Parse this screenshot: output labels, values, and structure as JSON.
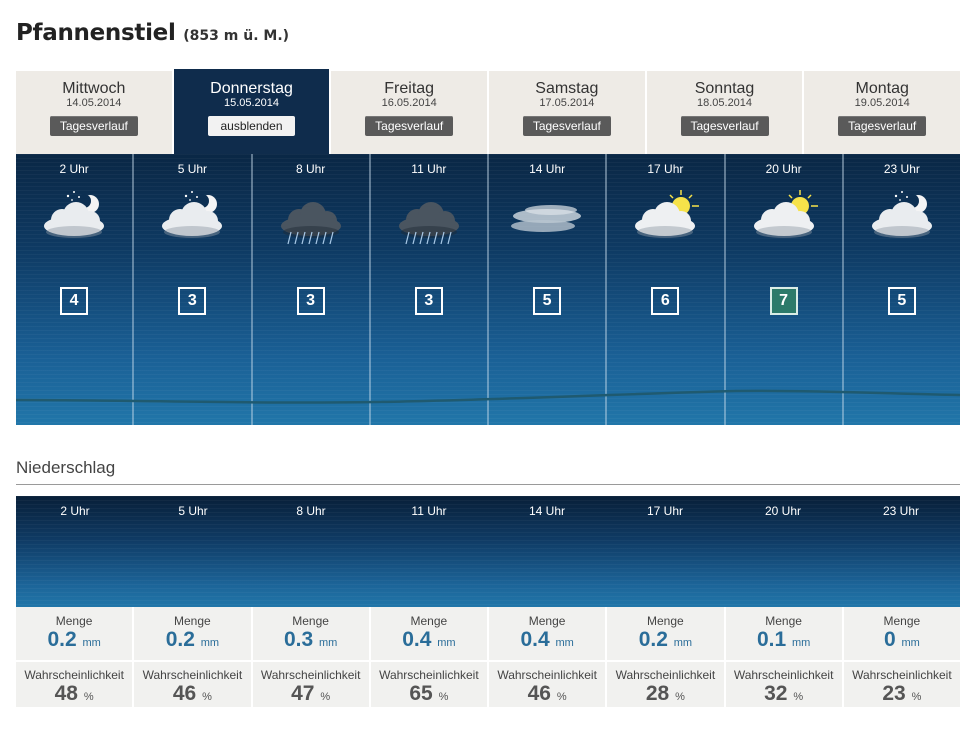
{
  "location": {
    "name": "Pfannenstiel",
    "elevation": "(853 m ü. M.)"
  },
  "days": [
    {
      "name": "Mittwoch",
      "date": "14.05.2014",
      "button": "Tagesverlauf",
      "active": false
    },
    {
      "name": "Donnerstag",
      "date": "15.05.2014",
      "button": "ausblenden",
      "active": true
    },
    {
      "name": "Freitag",
      "date": "16.05.2014",
      "button": "Tagesverlauf",
      "active": false
    },
    {
      "name": "Samstag",
      "date": "17.05.2014",
      "button": "Tagesverlauf",
      "active": false
    },
    {
      "name": "Sonntag",
      "date": "18.05.2014",
      "button": "Tagesverlauf",
      "active": false
    },
    {
      "name": "Montag",
      "date": "19.05.2014",
      "button": "Tagesverlauf",
      "active": false
    }
  ],
  "forecast": [
    {
      "hour": "2 Uhr",
      "icon": "moon-cloud-icon",
      "temp": "4"
    },
    {
      "hour": "5 Uhr",
      "icon": "moon-cloud-icon",
      "temp": "3"
    },
    {
      "hour": "8 Uhr",
      "icon": "rain-cloud-icon",
      "temp": "3"
    },
    {
      "hour": "11 Uhr",
      "icon": "rain-cloud-icon",
      "temp": "3"
    },
    {
      "hour": "14 Uhr",
      "icon": "fog-icon",
      "temp": "5"
    },
    {
      "hour": "17 Uhr",
      "icon": "sun-cloud-icon",
      "temp": "6"
    },
    {
      "hour": "20 Uhr",
      "icon": "sun-cloud-icon",
      "temp": "7"
    },
    {
      "hour": "23 Uhr",
      "icon": "moon-cloud-icon",
      "temp": "5"
    }
  ],
  "precip_section": {
    "title": "Niederschlag",
    "amount_label": "Menge",
    "amount_unit": "mm",
    "prob_label": "Wahrscheinlichkeit",
    "prob_unit": "%",
    "items": [
      {
        "hour": "2 Uhr",
        "amount": "0.2",
        "prob": "48"
      },
      {
        "hour": "5 Uhr",
        "amount": "0.2",
        "prob": "46"
      },
      {
        "hour": "8 Uhr",
        "amount": "0.3",
        "prob": "47"
      },
      {
        "hour": "11 Uhr",
        "amount": "0.4",
        "prob": "65"
      },
      {
        "hour": "14 Uhr",
        "amount": "0.4",
        "prob": "46"
      },
      {
        "hour": "17 Uhr",
        "amount": "0.2",
        "prob": "28"
      },
      {
        "hour": "20 Uhr",
        "amount": "0.1",
        "prob": "32"
      },
      {
        "hour": "23 Uhr",
        "amount": "0",
        "prob": "23"
      }
    ]
  },
  "colors": {
    "active_tab": "#0f2c4c",
    "temp_warm": "#2c7a6a",
    "amount_text": "#2a6d99"
  }
}
